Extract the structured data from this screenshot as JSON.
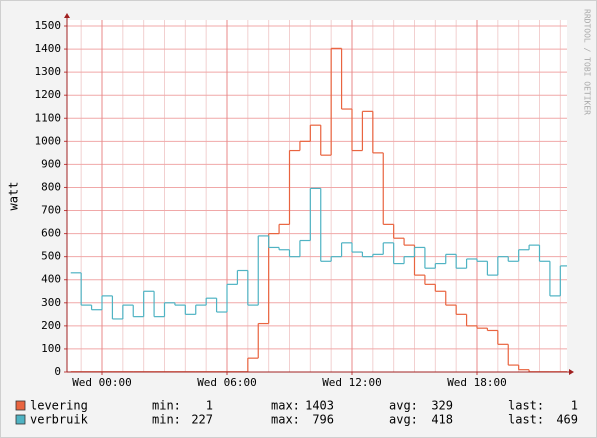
{
  "chart_data": {
    "type": "line",
    "y_label": "watt",
    "side_label": "RRDTOOL / TOBI OETIKER",
    "x": [
      -1.5,
      -1,
      -0.5,
      0,
      0.5,
      1,
      1.5,
      2,
      2.5,
      3,
      3.5,
      4,
      4.5,
      5,
      5.5,
      6,
      6.5,
      7,
      7.5,
      8,
      8.5,
      9,
      9.5,
      10,
      10.5,
      11,
      11.5,
      12,
      12.5,
      13,
      13.5,
      14,
      14.5,
      15,
      15.5,
      16,
      16.5,
      17,
      17.5,
      18,
      18.5,
      19,
      19.5,
      20,
      20.5,
      21,
      21.5,
      22
    ],
    "xlim": [
      -1.68,
      22.32
    ],
    "xticks": [
      {
        "value": 0,
        "label": "Wed 00:00"
      },
      {
        "value": 6,
        "label": "Wed 06:00"
      },
      {
        "value": 12,
        "label": "Wed 12:00"
      },
      {
        "value": 18,
        "label": "Wed 18:00"
      }
    ],
    "ylim": [
      0,
      1500
    ],
    "yticks": [
      0,
      100,
      200,
      300,
      400,
      500,
      600,
      700,
      800,
      900,
      1000,
      1100,
      1200,
      1300,
      1400,
      1500
    ],
    "grid": true,
    "stat_labels": [
      "min:",
      "max:",
      "avg:",
      "last:"
    ],
    "series": [
      {
        "name": "levering",
        "color": "#e9643f",
        "values": [
          1,
          1,
          1,
          1,
          1,
          1,
          1,
          1,
          1,
          1,
          1,
          1,
          1,
          1,
          1,
          1,
          1,
          60,
          210,
          600,
          640,
          960,
          1000,
          1070,
          940,
          1403,
          1140,
          960,
          1130,
          950,
          640,
          580,
          550,
          420,
          380,
          350,
          290,
          250,
          200,
          190,
          180,
          120,
          30,
          10,
          1,
          1,
          1,
          1
        ],
        "stats": {
          "min": 1,
          "max": 1403,
          "avg": 329,
          "last": 1
        }
      },
      {
        "name": "verbruik",
        "color": "#4fb3c3",
        "values": [
          430,
          290,
          270,
          330,
          230,
          290,
          240,
          350,
          240,
          300,
          290,
          250,
          290,
          320,
          260,
          380,
          440,
          290,
          590,
          540,
          530,
          500,
          570,
          796,
          480,
          500,
          560,
          520,
          500,
          510,
          560,
          470,
          500,
          540,
          450,
          470,
          510,
          450,
          490,
          480,
          420,
          500,
          480,
          530,
          550,
          480,
          330,
          460
        ],
        "stats": {
          "min": 227,
          "max": 796,
          "avg": 418,
          "last": 469
        }
      }
    ]
  }
}
